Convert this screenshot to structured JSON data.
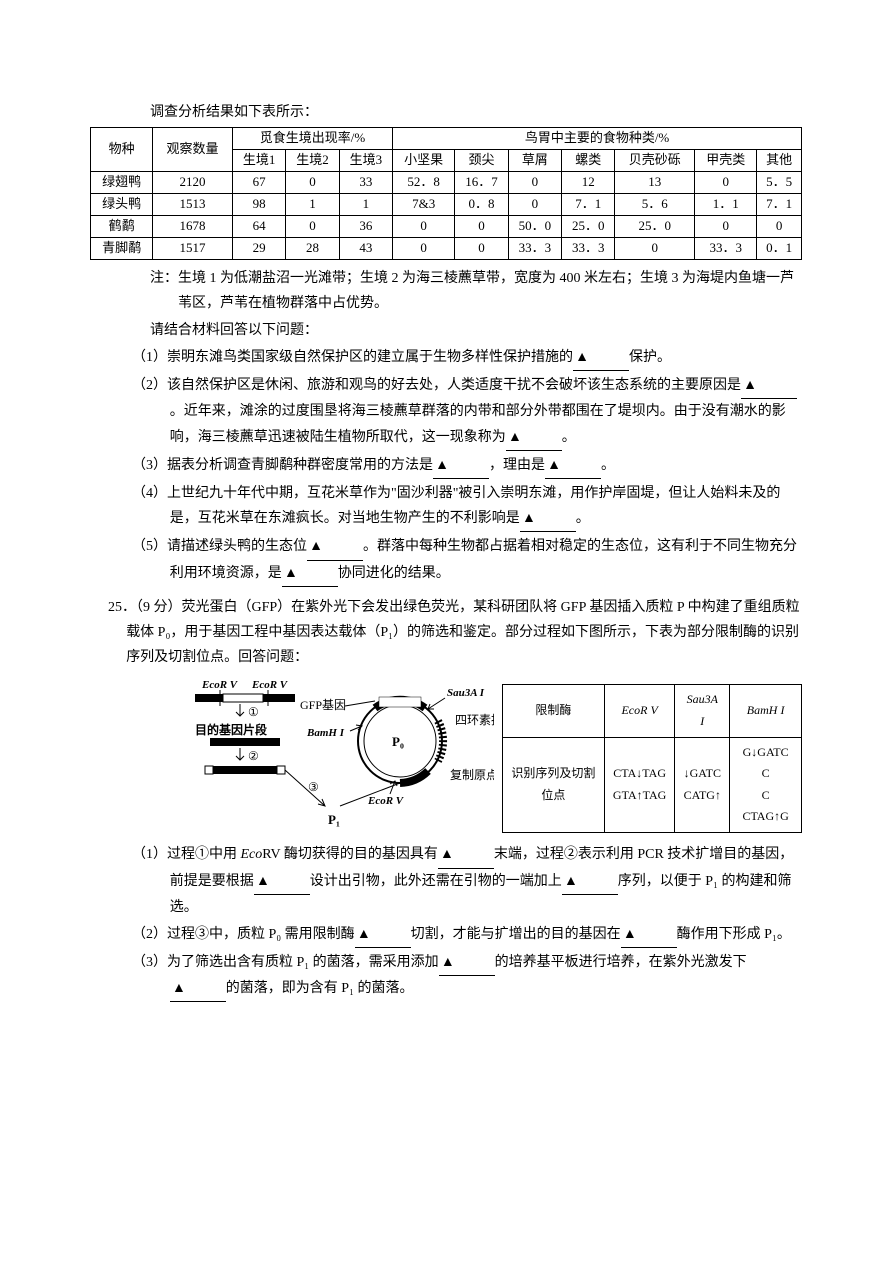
{
  "intro": "调查分析结果如下表所示：",
  "table": {
    "head": {
      "species": "物种",
      "obs": "观察数量",
      "habitat_group": "觅食生境出现率/%",
      "food_group": "鸟胃中主要的食物种类/%",
      "hab1": "生境1",
      "hab2": "生境2",
      "hab3": "生境3",
      "f1": "小坚果",
      "f2": "颈尖",
      "f3": "草屑",
      "f4": "螺类",
      "f5": "贝壳砂砾",
      "f6": "甲壳类",
      "f7": "其他"
    },
    "rows": [
      {
        "sp": "绿翅鸭",
        "obs": "2120",
        "h1": "67",
        "h2": "0",
        "h3": "33",
        "c1": "52．8",
        "c2": "16．7",
        "c3": "0",
        "c4": "12",
        "c5": "13",
        "c6": "0",
        "c7": "5．5"
      },
      {
        "sp": "绿头鸭",
        "obs": "1513",
        "h1": "98",
        "h2": "1",
        "h3": "1",
        "c1": "7&3",
        "c2": "0．8",
        "c3": "0",
        "c4": "7．1",
        "c5": "5．6",
        "c6": "1．1",
        "c7": "7．1"
      },
      {
        "sp": "鹤鹬",
        "obs": "1678",
        "h1": "64",
        "h2": "0",
        "h3": "36",
        "c1": "0",
        "c2": "0",
        "c3": "50．0",
        "c4": "25．0",
        "c5": "25．0",
        "c6": "0",
        "c7": "0"
      },
      {
        "sp": "青脚鹬",
        "obs": "1517",
        "h1": "29",
        "h2": "28",
        "h3": "43",
        "c1": "0",
        "c2": "0",
        "c3": "33．3",
        "c4": "33．3",
        "c5": "0",
        "c6": "33．3",
        "c7": "0．1"
      }
    ]
  },
  "note": "注：生境 1 为低潮盐沼一光滩带；生境 2 为海三棱藨草带，宽度为 400 米左右；生境 3 为海堤内鱼塘一芦苇区，芦苇在植物群落中占优势。",
  "prompt": "请结合材料回答以下问题：",
  "q1": {
    "pre": "（1）崇明东滩鸟类国家级自然保护区的建立属于生物多样性保护措施的",
    "post": "保护。"
  },
  "q2": {
    "pre": "（2）该自然保护区是休闲、旅游和观鸟的好去处，人类适度干扰不会破坏该生态系统的主要原因是",
    "mid": "。近年来，滩涂的过度围垦将海三棱藨草群落的内带和部分外带都围在了堤坝内。由于没有潮水的影响，海三棱藨草迅速被陆生植物所取代，这一现象称为",
    "post": "。"
  },
  "q3": {
    "pre": "（3）据表分析调查青脚鹬种群密度常用的方法是",
    "mid": "，理由是",
    "post": "。"
  },
  "q4": {
    "pre": "（4）上世纪九十年代中期，互花米草作为\"固沙利器\"被引入崇明东滩，用作护岸固堤，但让人始料未及的是，互花米草在东滩疯长。对当地生物产生的不利影响是",
    "post": "。"
  },
  "q5": {
    "pre": "（5）请描述绿头鸭的生态位",
    "mid": "。群落中每种生物都占据着相对稳定的生态位，这有利于不同生物充分利用环境资源，是",
    "post": "协同进化的结果。"
  },
  "q25_stem": "25．（9 分）荧光蛋白（GFP）在紫外光下会发出绿色荧光，某科研团队将 GFP 基因插入质粒 P 中构建了重组质粒载体 P₀，用于基因工程中基因表达载体（P₁）的筛选和鉴定。部分过程如下图所示，下表为部分限制酶的识别序列及切割位点。回答问题：",
  "fig": {
    "ecorv": "EcoR V",
    "sau3a": "Sau3A I",
    "bamh": "BamH I",
    "gfp": "GFP基因",
    "target": "目的基因片段",
    "tet": "四环素抗性基因",
    "ori": "复制原点",
    "p0": "P₀",
    "p1": "P₁",
    "s1": "①",
    "s2": "②",
    "s3": "③"
  },
  "enzyme": {
    "h1": "限制酶",
    "h2": "识别序列及切割位点",
    "e1": "EcoR V",
    "s1a": "CTA↓TAG",
    "s1b": "GTA↑TAG",
    "e2": "Sau3A I",
    "s2a": "↓GATC",
    "s2b": "CATG↑",
    "e3": "BamH I",
    "s3a": "G↓GATC C",
    "s3b": "C CTAG↑G"
  },
  "q25_1": {
    "a": "（1）过程①中用 ",
    "b": "RV 酶切获得的目的基因具有",
    "c": "末端，过程②表示利用 PCR 技术扩增目的基因，前提是要根据",
    "d": "设计出引物，此外还需在引物的一端加上",
    "e": "序列，以便于 P₁ 的构建和筛选。"
  },
  "q25_2": {
    "a": "（2）过程③中，质粒 P₀ 需用限制酶",
    "b": "切割，才能与扩增出的目的基因在",
    "c": "酶作用下形成 P₁。"
  },
  "q25_3": {
    "a": "（3）为了筛选出含有质粒 P₁ 的菌落，需采用添加",
    "b": "的培养基平板进行培养，在紫外光激发下",
    "c": "的菌落，即为含有 P₁ 的菌落。"
  },
  "blank": "▲"
}
